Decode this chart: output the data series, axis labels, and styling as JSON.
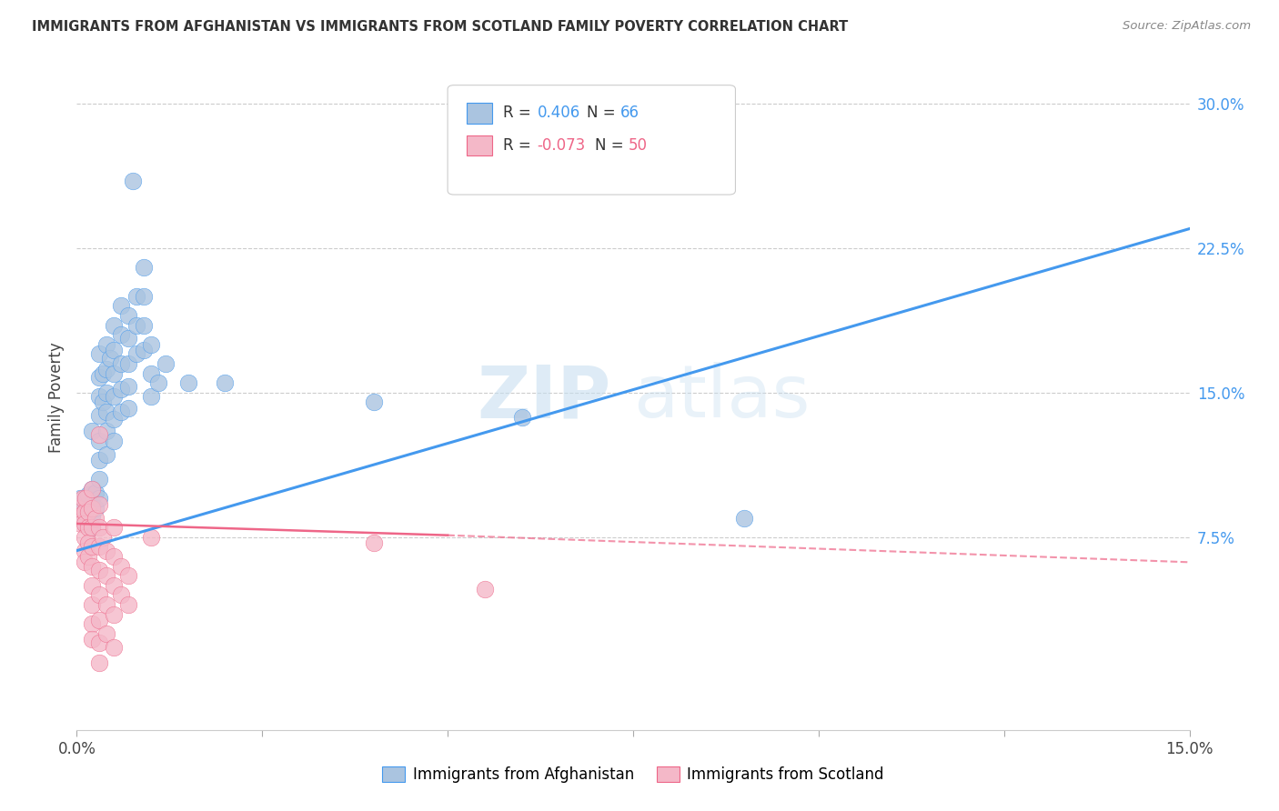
{
  "title": "IMMIGRANTS FROM AFGHANISTAN VS IMMIGRANTS FROM SCOTLAND FAMILY POVERTY CORRELATION CHART",
  "source": "Source: ZipAtlas.com",
  "ylabel": "Family Poverty",
  "y_ticks_right": [
    "7.5%",
    "15.0%",
    "22.5%",
    "30.0%"
  ],
  "xlim": [
    0.0,
    0.15
  ],
  "ylim": [
    -0.025,
    0.32
  ],
  "afghanistan_color": "#aac4e0",
  "scotland_color": "#f4b8c8",
  "line_afghanistan": "#4499ee",
  "line_scotland": "#ee6688",
  "background_color": "#ffffff",
  "grid_color": "#cccccc",
  "watermark_zip": "ZIP",
  "watermark_atlas": "atlas",
  "afghanistan_scatter": [
    [
      0.0005,
      0.095
    ],
    [
      0.0008,
      0.088
    ],
    [
      0.001,
      0.092
    ],
    [
      0.001,
      0.085
    ],
    [
      0.0012,
      0.082
    ],
    [
      0.0015,
      0.097
    ],
    [
      0.0015,
      0.09
    ],
    [
      0.0015,
      0.083
    ],
    [
      0.002,
      0.1
    ],
    [
      0.002,
      0.093
    ],
    [
      0.002,
      0.086
    ],
    [
      0.002,
      0.08
    ],
    [
      0.002,
      0.13
    ],
    [
      0.0025,
      0.098
    ],
    [
      0.0025,
      0.09
    ],
    [
      0.003,
      0.17
    ],
    [
      0.003,
      0.158
    ],
    [
      0.003,
      0.148
    ],
    [
      0.003,
      0.138
    ],
    [
      0.003,
      0.125
    ],
    [
      0.003,
      0.115
    ],
    [
      0.003,
      0.105
    ],
    [
      0.003,
      0.095
    ],
    [
      0.0035,
      0.16
    ],
    [
      0.0035,
      0.145
    ],
    [
      0.004,
      0.175
    ],
    [
      0.004,
      0.162
    ],
    [
      0.004,
      0.15
    ],
    [
      0.004,
      0.14
    ],
    [
      0.004,
      0.13
    ],
    [
      0.004,
      0.118
    ],
    [
      0.0045,
      0.168
    ],
    [
      0.005,
      0.185
    ],
    [
      0.005,
      0.172
    ],
    [
      0.005,
      0.16
    ],
    [
      0.005,
      0.148
    ],
    [
      0.005,
      0.136
    ],
    [
      0.005,
      0.125
    ],
    [
      0.006,
      0.195
    ],
    [
      0.006,
      0.18
    ],
    [
      0.006,
      0.165
    ],
    [
      0.006,
      0.152
    ],
    [
      0.006,
      0.14
    ],
    [
      0.007,
      0.19
    ],
    [
      0.007,
      0.178
    ],
    [
      0.007,
      0.165
    ],
    [
      0.007,
      0.153
    ],
    [
      0.007,
      0.142
    ],
    [
      0.0075,
      0.26
    ],
    [
      0.008,
      0.2
    ],
    [
      0.008,
      0.185
    ],
    [
      0.008,
      0.17
    ],
    [
      0.009,
      0.215
    ],
    [
      0.009,
      0.2
    ],
    [
      0.009,
      0.185
    ],
    [
      0.009,
      0.172
    ],
    [
      0.01,
      0.175
    ],
    [
      0.01,
      0.16
    ],
    [
      0.01,
      0.148
    ],
    [
      0.011,
      0.155
    ],
    [
      0.012,
      0.165
    ],
    [
      0.015,
      0.155
    ],
    [
      0.02,
      0.155
    ],
    [
      0.04,
      0.145
    ],
    [
      0.06,
      0.137
    ],
    [
      0.09,
      0.085
    ]
  ],
  "scotland_scatter": [
    [
      0.0002,
      0.09
    ],
    [
      0.0004,
      0.086
    ],
    [
      0.0006,
      0.082
    ],
    [
      0.0008,
      0.095
    ],
    [
      0.001,
      0.088
    ],
    [
      0.001,
      0.082
    ],
    [
      0.001,
      0.075
    ],
    [
      0.001,
      0.068
    ],
    [
      0.001,
      0.062
    ],
    [
      0.0012,
      0.095
    ],
    [
      0.0015,
      0.088
    ],
    [
      0.0015,
      0.08
    ],
    [
      0.0015,
      0.072
    ],
    [
      0.0015,
      0.065
    ],
    [
      0.002,
      0.1
    ],
    [
      0.002,
      0.09
    ],
    [
      0.002,
      0.08
    ],
    [
      0.002,
      0.07
    ],
    [
      0.002,
      0.06
    ],
    [
      0.002,
      0.05
    ],
    [
      0.002,
      0.04
    ],
    [
      0.002,
      0.03
    ],
    [
      0.002,
      0.022
    ],
    [
      0.0025,
      0.085
    ],
    [
      0.003,
      0.128
    ],
    [
      0.003,
      0.092
    ],
    [
      0.003,
      0.08
    ],
    [
      0.003,
      0.07
    ],
    [
      0.003,
      0.058
    ],
    [
      0.003,
      0.045
    ],
    [
      0.003,
      0.032
    ],
    [
      0.003,
      0.02
    ],
    [
      0.003,
      0.01
    ],
    [
      0.0035,
      0.075
    ],
    [
      0.004,
      0.068
    ],
    [
      0.004,
      0.055
    ],
    [
      0.004,
      0.04
    ],
    [
      0.004,
      0.025
    ],
    [
      0.005,
      0.08
    ],
    [
      0.005,
      0.065
    ],
    [
      0.005,
      0.05
    ],
    [
      0.005,
      0.035
    ],
    [
      0.005,
      0.018
    ],
    [
      0.006,
      0.06
    ],
    [
      0.006,
      0.045
    ],
    [
      0.007,
      0.055
    ],
    [
      0.007,
      0.04
    ],
    [
      0.01,
      0.075
    ],
    [
      0.04,
      0.072
    ],
    [
      0.055,
      0.048
    ]
  ],
  "afghanistan_line": {
    "x0": 0.0,
    "y0": 0.068,
    "x1": 0.15,
    "y1": 0.235
  },
  "scotland_line_solid": {
    "x0": 0.0,
    "y0": 0.082,
    "x1": 0.05,
    "y1": 0.076
  },
  "scotland_line_dash": {
    "x0": 0.05,
    "y0": 0.076,
    "x1": 0.15,
    "y1": 0.062
  }
}
